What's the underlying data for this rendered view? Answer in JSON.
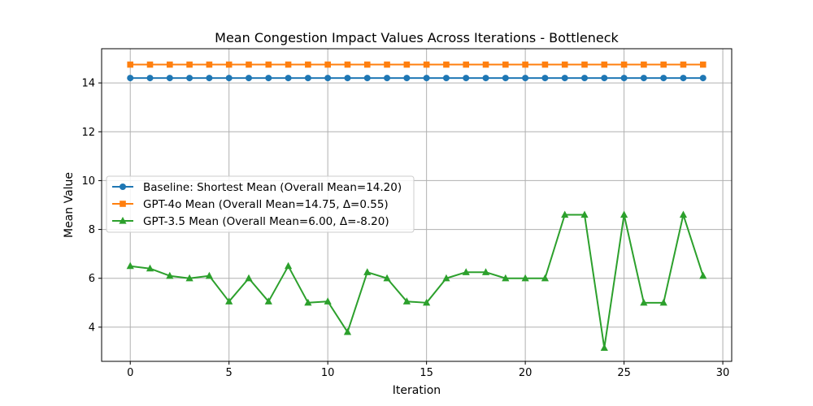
{
  "chart_data": {
    "type": "line",
    "title": "Mean Congestion Impact Values Across Iterations - Bottleneck",
    "xlabel": "Iteration",
    "ylabel": "Mean Value",
    "xlim": [
      -1.45,
      30.45
    ],
    "ylim": [
      2.6,
      15.4
    ],
    "xticks": [
      0,
      5,
      10,
      15,
      20,
      25,
      30
    ],
    "xtick_labels": [
      "0",
      "5",
      "10",
      "15",
      "20",
      "25",
      "30"
    ],
    "yticks": [
      4,
      6,
      8,
      10,
      12,
      14
    ],
    "ytick_labels": [
      "4",
      "6",
      "8",
      "10",
      "12",
      "14"
    ],
    "grid": true,
    "legend_position": "center-left",
    "x": [
      0,
      1,
      2,
      3,
      4,
      5,
      6,
      7,
      8,
      9,
      10,
      11,
      12,
      13,
      14,
      15,
      16,
      17,
      18,
      19,
      20,
      21,
      22,
      23,
      24,
      25,
      26,
      27,
      28,
      29
    ],
    "series": [
      {
        "name": "Baseline: Shortest Mean (Overall Mean=14.20)",
        "color": "#1f77b4",
        "marker": "circle",
        "values": [
          14.2,
          14.2,
          14.2,
          14.2,
          14.2,
          14.2,
          14.2,
          14.2,
          14.2,
          14.2,
          14.2,
          14.2,
          14.2,
          14.2,
          14.2,
          14.2,
          14.2,
          14.2,
          14.2,
          14.2,
          14.2,
          14.2,
          14.2,
          14.2,
          14.2,
          14.2,
          14.2,
          14.2,
          14.2,
          14.2
        ]
      },
      {
        "name": "GPT-4o Mean (Overall Mean=14.75, Δ=0.55)",
        "color": "#ff7f0e",
        "marker": "square",
        "values": [
          14.75,
          14.75,
          14.75,
          14.75,
          14.75,
          14.75,
          14.75,
          14.75,
          14.75,
          14.75,
          14.75,
          14.75,
          14.75,
          14.75,
          14.75,
          14.75,
          14.75,
          14.75,
          14.75,
          14.75,
          14.75,
          14.75,
          14.75,
          14.75,
          14.75,
          14.75,
          14.75,
          14.75,
          14.75,
          14.75
        ]
      },
      {
        "name": "GPT-3.5 Mean (Overall Mean=6.00, Δ=-8.20)",
        "color": "#2ca02c",
        "marker": "triangle",
        "values": [
          6.5,
          6.4,
          6.1,
          6.0,
          6.1,
          5.05,
          6.0,
          5.05,
          6.5,
          5.0,
          5.05,
          3.8,
          6.25,
          6.0,
          5.05,
          5.0,
          6.0,
          6.25,
          6.25,
          6.0,
          6.0,
          6.0,
          8.6,
          8.6,
          3.15,
          8.6,
          5.0,
          5.0,
          8.6,
          6.1
        ]
      }
    ]
  }
}
